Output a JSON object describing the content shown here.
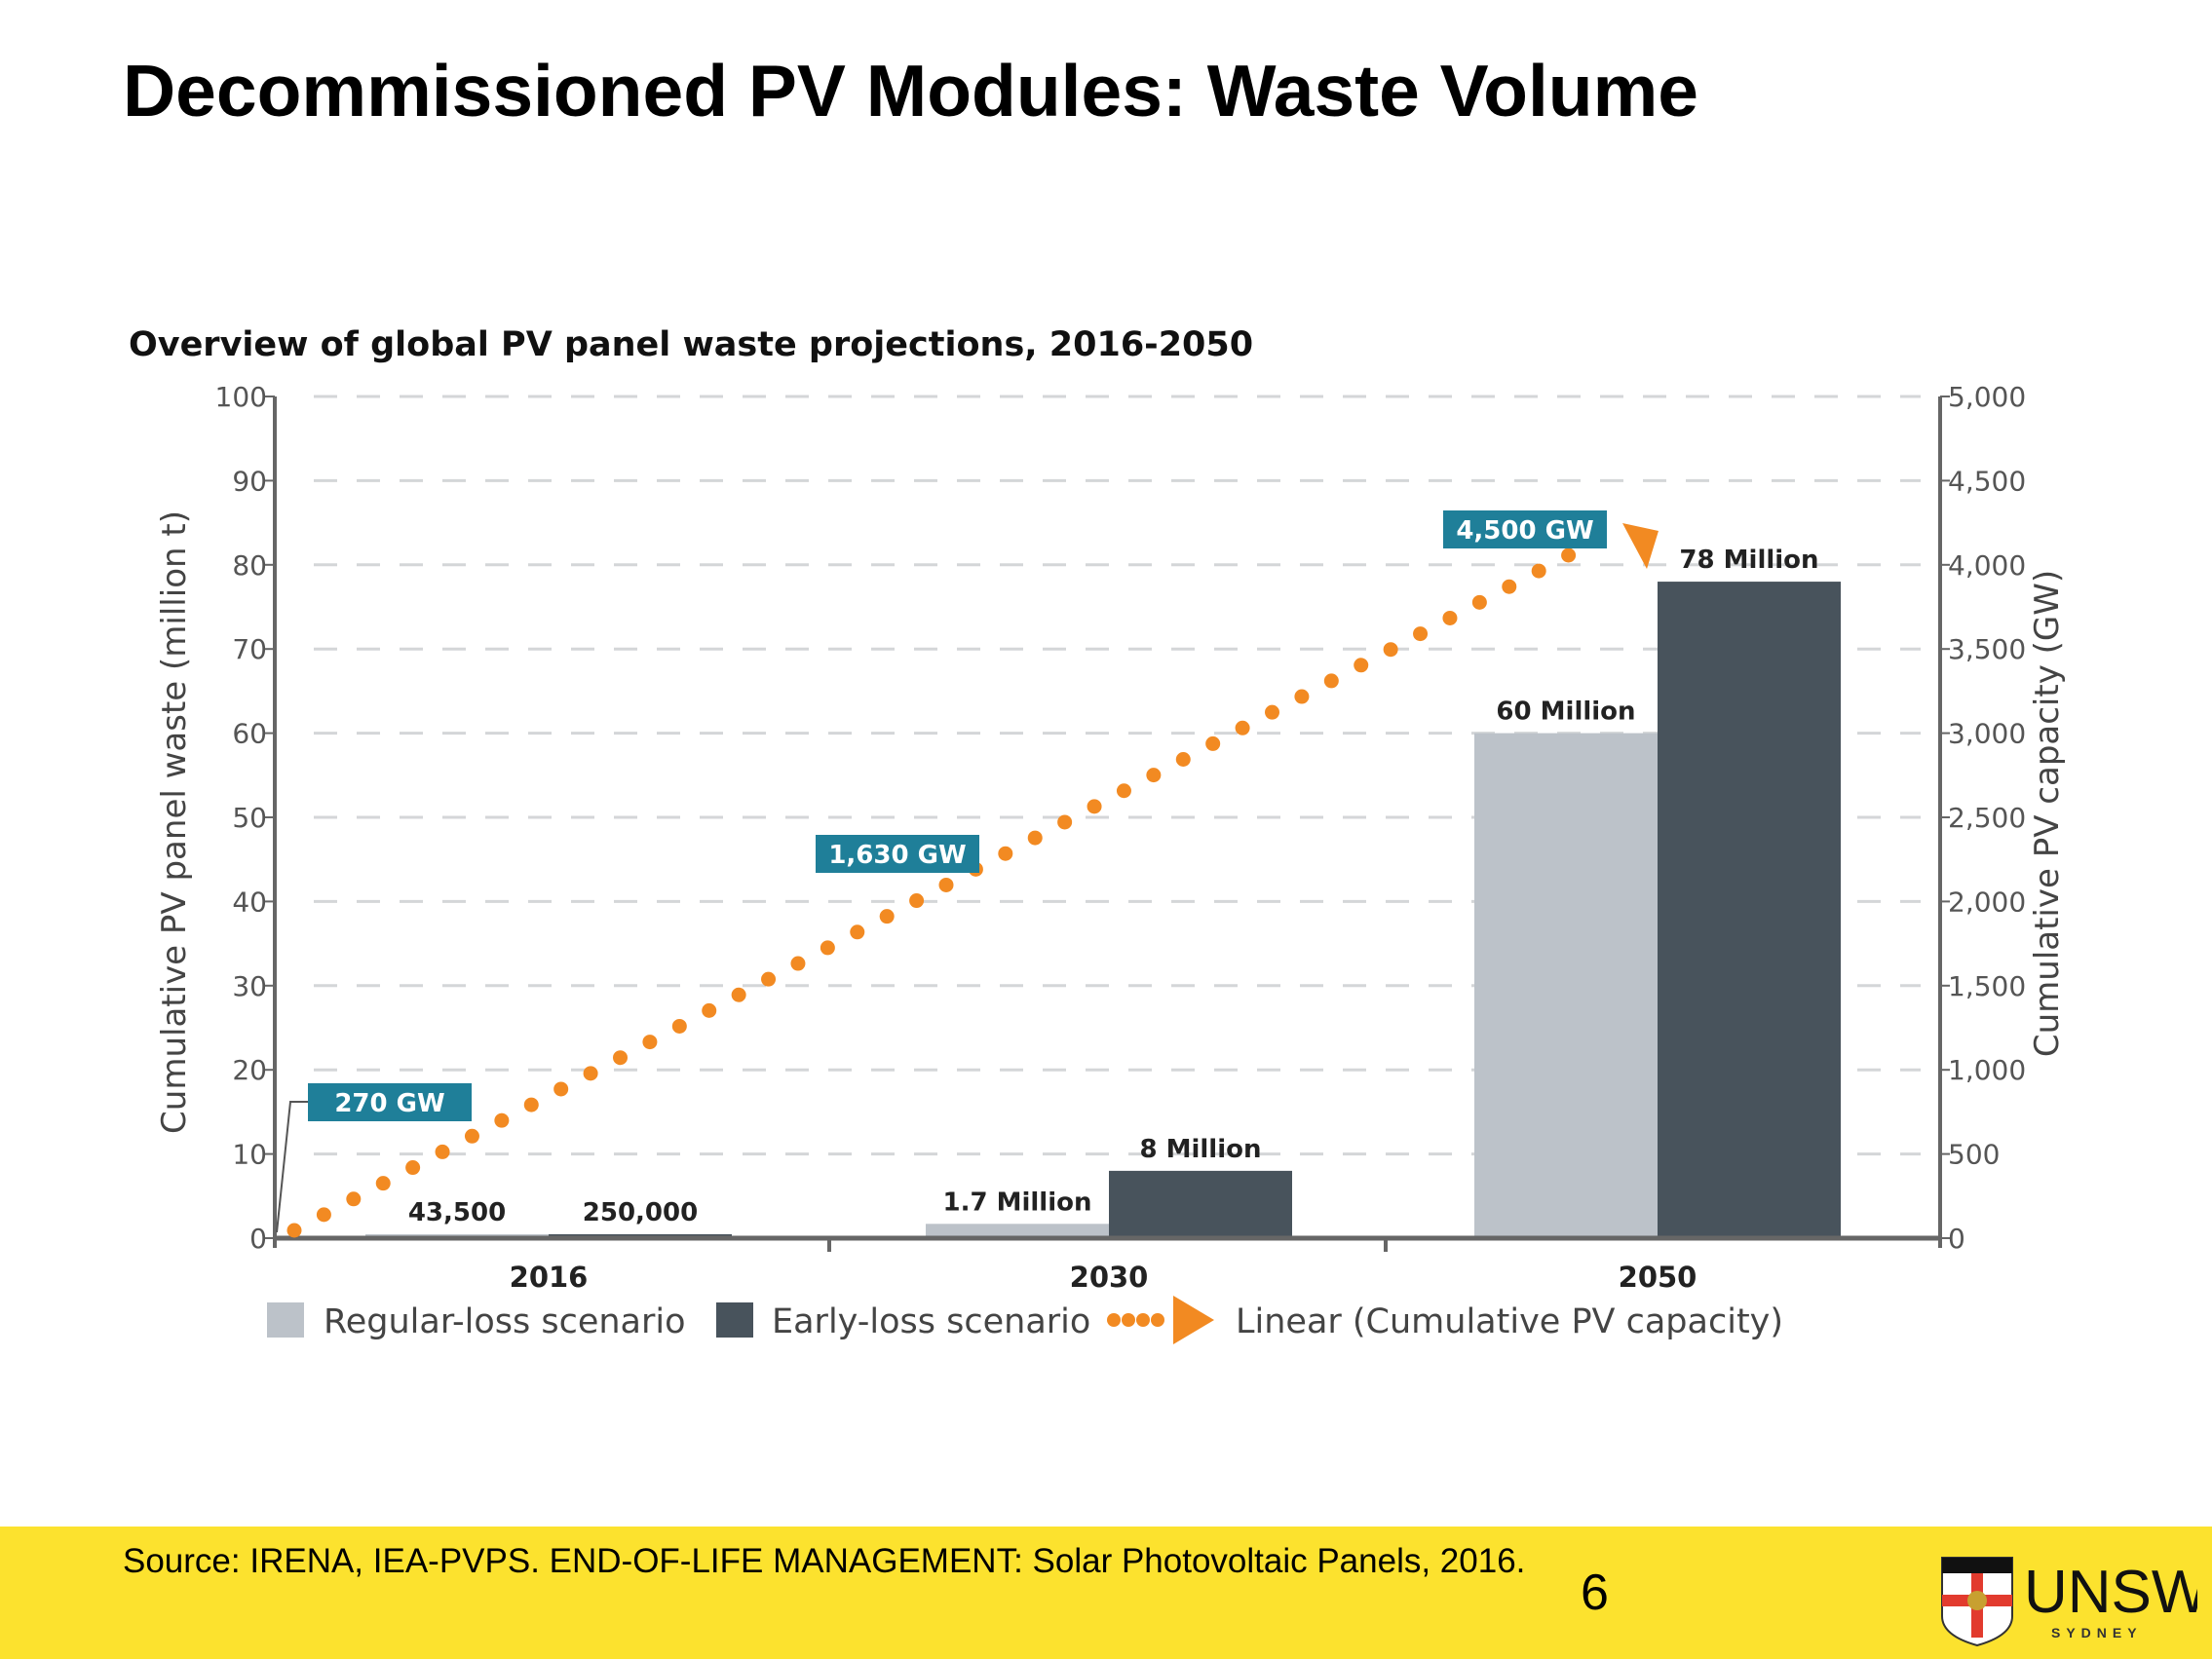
{
  "slide": {
    "title": "Decommissioned PV Modules: Waste Volume",
    "source": "Source: IRENA, IEA-PVPS. END-OF-LIFE MANAGEMENT: Solar Photovoltaic Panels, 2016.",
    "page_number": "6",
    "footer_color": "#fce22e",
    "logo_text": "UNSW",
    "logo_subtext": "SYDNEY"
  },
  "chart_data": {
    "type": "bar",
    "title": "Overview of global PV panel waste projections, 2016-2050",
    "categories": [
      "2016",
      "2030",
      "2050"
    ],
    "ylabel": "Cumulative PV panel waste (million t)",
    "ylabel_right": "Cumulative PV capacity (GW)",
    "ylim": [
      0,
      100
    ],
    "ylim_right": [
      0,
      5000
    ],
    "yticks": [
      "0",
      "10",
      "20",
      "30",
      "40",
      "50",
      "60",
      "70",
      "80",
      "90",
      "100"
    ],
    "yticks_right": [
      "0",
      "500",
      "1,000",
      "1,500",
      "2,000",
      "2,500",
      "3,000",
      "3,500",
      "4,000",
      "4,500",
      "5,000"
    ],
    "grid": true,
    "legend_position": "bottom",
    "series": [
      {
        "name": "Regular-loss scenario",
        "values": [
          0.0435,
          1.7,
          60
        ],
        "labels": [
          "43,500",
          "1.7 Million",
          "60 Million"
        ],
        "color": "#bcc2c9"
      },
      {
        "name": "Early-loss scenario",
        "values": [
          0.25,
          8,
          78
        ],
        "labels": [
          "250,000",
          "8 Million",
          "78 Million"
        ],
        "color": "#48535c"
      }
    ],
    "line": {
      "name": "Linear (Cumulative PV capacity)",
      "axis": "right",
      "color": "#f28a22",
      "points": [
        {
          "x": "2016",
          "value": 270,
          "label": "270 GW"
        },
        {
          "x": "2030",
          "value": 1630,
          "label": "1,630 GW"
        },
        {
          "x": "2050",
          "value": 4500,
          "label": "4,500 GW"
        }
      ],
      "label_color": "#1f7f99"
    }
  }
}
